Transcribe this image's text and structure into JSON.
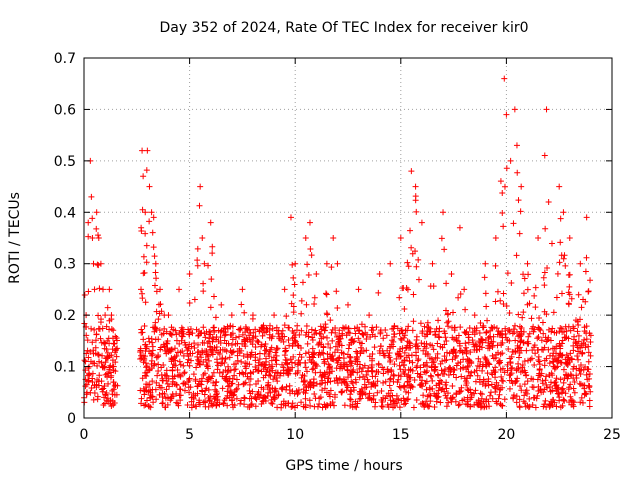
{
  "chart_data": {
    "type": "scatter",
    "title": "Day 352 of 2024, Rate Of TEC Index for receiver kir0",
    "xlabel": "GPS time / hours",
    "ylabel": "ROTI / TECUs",
    "xlim": [
      0,
      25
    ],
    "ylim": [
      0,
      0.7
    ],
    "x_ticks": [
      0,
      5,
      10,
      15,
      20,
      25
    ],
    "x_tick_labels": [
      "0",
      "5",
      "10",
      "15",
      "20",
      "25"
    ],
    "y_ticks": [
      0,
      0.1,
      0.2,
      0.3,
      0.4,
      0.5,
      0.6,
      0.7
    ],
    "y_tick_labels": [
      "0",
      "0.1",
      "0.2",
      "0.3",
      "0.4",
      "0.5",
      "0.6",
      "0.7"
    ],
    "grid": true,
    "marker": "+",
    "marker_color": "#ff0000",
    "series": [
      {
        "name": "ROTI",
        "x": [
          0.1,
          0.2,
          0.3,
          0.35,
          0.4,
          0.45,
          0.5,
          0.6,
          0.7,
          0.8,
          0.9,
          1.0,
          1.1,
          1.2,
          1.3,
          1.4,
          2.7,
          2.75,
          2.8,
          2.9,
          3.0,
          3.1,
          3.2,
          3.3,
          3.4,
          3.6,
          3.8,
          4.0,
          4.5,
          5.0,
          5.5,
          5.6,
          5.7,
          6.0,
          6.5,
          7.0,
          7.5,
          8.0,
          8.5,
          9.0,
          9.5,
          9.8,
          10.0,
          10.5,
          10.7,
          11.0,
          11.5,
          11.8,
          12.0,
          12.5,
          13.0,
          13.5,
          14.0,
          14.5,
          15.0,
          15.5,
          15.7,
          16.0,
          16.5,
          17.0,
          17.4,
          17.8,
          18.0,
          18.5,
          19.0,
          19.5,
          19.9,
          20.0,
          20.2,
          20.4,
          20.5,
          20.7,
          21.0,
          21.5,
          21.9,
          22.0,
          22.5,
          22.7,
          23.0,
          23.5,
          23.8
        ],
        "y": [
          0.2,
          0.38,
          0.5,
          0.43,
          0.35,
          0.3,
          0.25,
          0.4,
          0.35,
          0.3,
          0.25,
          0.2,
          0.15,
          0.25,
          0.2,
          0.1,
          0.25,
          0.52,
          0.47,
          0.4,
          0.52,
          0.45,
          0.4,
          0.39,
          0.3,
          0.25,
          0.2,
          0.2,
          0.25,
          0.28,
          0.45,
          0.35,
          0.3,
          0.38,
          0.22,
          0.2,
          0.25,
          0.2,
          0.18,
          0.2,
          0.25,
          0.39,
          0.3,
          0.35,
          0.38,
          0.28,
          0.3,
          0.35,
          0.3,
          0.22,
          0.25,
          0.2,
          0.28,
          0.3,
          0.35,
          0.48,
          0.45,
          0.38,
          0.3,
          0.4,
          0.28,
          0.37,
          0.25,
          0.2,
          0.3,
          0.35,
          0.66,
          0.59,
          0.5,
          0.6,
          0.53,
          0.45,
          0.3,
          0.35,
          0.6,
          0.42,
          0.45,
          0.4,
          0.35,
          0.3,
          0.39
        ],
        "baseline_band": [
          0.02,
          0.18
        ]
      }
    ]
  }
}
